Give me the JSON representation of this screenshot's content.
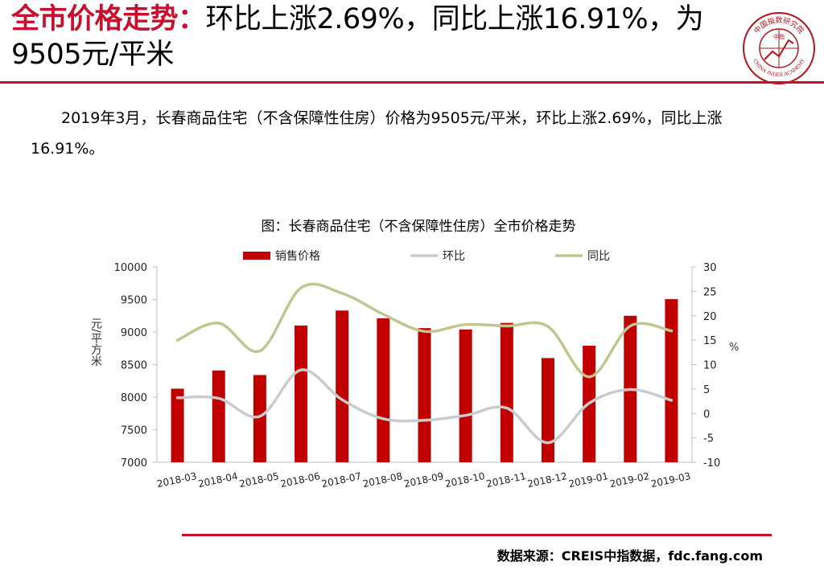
{
  "headline": {
    "accent": "全市价格走势：",
    "rest": "环比上涨2.69%，同比上涨16.91%，为9505元/平米"
  },
  "logo": {
    "top_text": "中国指数研究院",
    "bottom_text": "CHINA INDEX ACADEMY",
    "center_text": "中指",
    "color": "#b5121b"
  },
  "summary": "2019年3月，长春商品住宅（不含保障性住房）价格为9505元/平米，环比上涨2.69%，同比上涨16.91%。",
  "source": "数据来源：CREIS中指数据，fdc.fang.com",
  "colors": {
    "accent": "#c8102e",
    "bar": "#c00000",
    "mom": "#c9ccce",
    "yoy": "#c3c590"
  },
  "chart_data": {
    "type": "bar",
    "title": "图：长春商品住宅（不含保障性住房）全市价格走势",
    "categories": [
      "2018-03",
      "2018-04",
      "2018-05",
      "2018-06",
      "2018-07",
      "2018-08",
      "2018-09",
      "2018-10",
      "2018-11",
      "2018-12",
      "2019-01",
      "2019-02",
      "2019-03"
    ],
    "series": [
      {
        "name": "销售价格",
        "type": "bar",
        "axis": "left",
        "values": [
          8130,
          8410,
          8340,
          9100,
          9330,
          9210,
          9060,
          9040,
          9140,
          8600,
          8790,
          9250,
          9505
        ]
      },
      {
        "name": "环比",
        "type": "line",
        "axis": "right",
        "values": [
          3.2,
          3.1,
          -0.6,
          8.9,
          2.8,
          -1.1,
          -1.4,
          -0.4,
          1.1,
          -6.0,
          2.1,
          4.9,
          2.69
        ]
      },
      {
        "name": "同比",
        "type": "line",
        "axis": "right",
        "values": [
          15.0,
          18.5,
          12.8,
          25.7,
          24.6,
          20.3,
          16.8,
          18.2,
          17.9,
          17.8,
          7.5,
          17.9,
          16.91
        ]
      }
    ],
    "y_left": {
      "label": "元/平方米",
      "range": [
        7000,
        10000
      ],
      "ticks": [
        "10000",
        "9500",
        "9000",
        "8500",
        "8000",
        "7500",
        "7000"
      ]
    },
    "y_right": {
      "label": "%",
      "range": [
        -10,
        30
      ],
      "ticks": [
        "30",
        "25",
        "20",
        "15",
        "10",
        "5",
        "0",
        "-5",
        "-10"
      ]
    },
    "grid": false,
    "legend_position": "top"
  }
}
